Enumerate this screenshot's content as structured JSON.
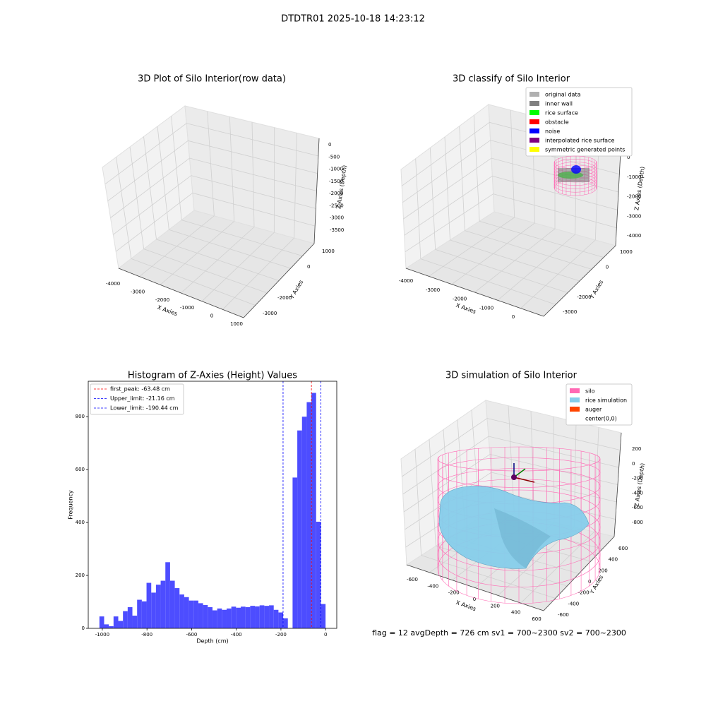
{
  "title": "DTDTR01 2025-10-18 14:23:12",
  "footer": "flag = 12   avgDepth = 726 cm  sv1 = 700~2300  sv2 = 700~2300",
  "chart_data": [
    {
      "type": "scatter3d",
      "title": "3D Plot of Silo Interior(row data)",
      "xlabel": "X Axies",
      "ylabel": "Y Axies",
      "zlabel": "Z Axies (Depth)",
      "xticks": [
        -4000,
        -3000,
        -2000,
        -1000,
        0,
        1000
      ],
      "yticks": [
        -3000,
        -2000,
        0,
        1000
      ],
      "zticks": [
        0,
        -500,
        -1000,
        -1500,
        -2000,
        -2500,
        -3000,
        -3500
      ]
    },
    {
      "type": "scatter3d",
      "title": "3D classify of Silo Interior",
      "xlabel": "X Axies",
      "ylabel": "Y Axies",
      "zlabel": "Z Axies (Depth)",
      "xticks": [
        -4000,
        -3000,
        -2000,
        -1000,
        0
      ],
      "yticks": [
        -3000,
        -2000,
        0,
        1000
      ],
      "zticks": [
        0,
        -1000,
        -2000,
        -3000,
        -4000
      ],
      "legend": [
        {
          "name": "original data",
          "color": "#b0b0b0"
        },
        {
          "name": "inner wall",
          "color": "#808080"
        },
        {
          "name": "rice surface",
          "color": "#00ff00"
        },
        {
          "name": "obstacle",
          "color": "#ff0000"
        },
        {
          "name": "noise",
          "color": "#0000ff"
        },
        {
          "name": "interpolated rice surface",
          "color": "#800080"
        },
        {
          "name": "symmetric generated points",
          "color": "#ffff00"
        }
      ]
    },
    {
      "type": "histogram",
      "title": "Histogram of Z-Axies (Height) Values",
      "xlabel": "Depth (cm)",
      "ylabel": "Frequency",
      "color": "#4d4dff",
      "bins": [
        -1013,
        -991.9,
        -970.8,
        -949.7,
        -928.6,
        -907.5,
        -886.4,
        -865.3,
        -844.2,
        -823.1,
        -802,
        -780.9,
        -759.8,
        -738.7,
        -717.6,
        -696.5,
        -675.4,
        -654.3,
        -633.2,
        -612.1,
        -591,
        -569.9,
        -548.8,
        -527.7,
        -506.6,
        -485.5,
        -464.4,
        -443.3,
        -422.2,
        -401.1,
        -380,
        -358.9,
        -337.8,
        -316.7,
        -295.6,
        -274.5,
        -253.4,
        -232.3,
        -211.2,
        -190.1,
        -169,
        -147.9,
        -126.8,
        -105.7,
        -84.6,
        -63.5,
        -42.4,
        -21.3,
        -0.2
      ],
      "counts": [
        45,
        15,
        8,
        45,
        28,
        65,
        80,
        48,
        108,
        102,
        172,
        135,
        165,
        180,
        250,
        180,
        152,
        128,
        118,
        105,
        105,
        95,
        88,
        80,
        68,
        75,
        70,
        75,
        82,
        78,
        82,
        80,
        85,
        83,
        87,
        85,
        87,
        70,
        60,
        38,
        0,
        570,
        748,
        800,
        855,
        890,
        403,
        92
      ],
      "xlim": [
        -1063,
        50
      ],
      "ylim": [
        0,
        934
      ],
      "xticks": [
        -1000,
        -800,
        -600,
        -400,
        -200,
        0
      ],
      "yticks": [
        0,
        200,
        400,
        600,
        800
      ],
      "lines": [
        {
          "label": "first_peak: -63.48 cm",
          "value": -63.48,
          "color": "#ff0000"
        },
        {
          "label": "Upper_limit: -21.16 cm",
          "value": -21.16,
          "color": "#0000ff"
        },
        {
          "label": "Lower_limit: -190.44 cm",
          "value": -190.44,
          "color": "#0000ff"
        }
      ]
    },
    {
      "type": "surface3d",
      "title": "3D simulation of Silo Interior",
      "xlabel": "X Axies",
      "ylabel": "Y Axies",
      "zlabel": "Z Axies (Depth)",
      "xticks": [
        -600,
        -400,
        -200,
        0,
        200,
        400,
        600
      ],
      "yticks": [
        -600,
        -400,
        -200,
        0,
        200,
        400,
        600
      ],
      "zticks": [
        200,
        0,
        -200,
        -400,
        -600,
        -800
      ],
      "legend": [
        {
          "name": "silo",
          "color": "#ff69b4"
        },
        {
          "name": "rice simulation",
          "color": "#87ceeb"
        },
        {
          "name": "auger",
          "color": "#ff4500"
        },
        {
          "name": "center(0,0)",
          "color": "#ffffff"
        }
      ]
    }
  ]
}
